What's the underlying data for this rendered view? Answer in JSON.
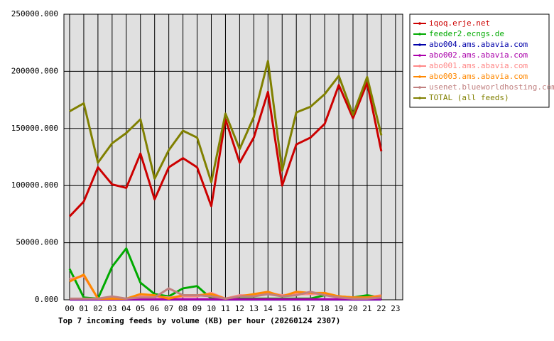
{
  "chart_data": {
    "type": "line",
    "title": "Top 7 incoming feeds by volume (KB) per hour (20260124 2307)",
    "categories": [
      "00",
      "01",
      "02",
      "03",
      "04",
      "05",
      "06",
      "07",
      "08",
      "09",
      "10",
      "11",
      "12",
      "13",
      "14",
      "15",
      "16",
      "17",
      "18",
      "19",
      "20",
      "21",
      "22",
      "23"
    ],
    "ylim": [
      0,
      250000
    ],
    "yticks": [
      {
        "value": 0,
        "label": "0.000"
      },
      {
        "value": 50000,
        "label": "50000.000"
      },
      {
        "value": 100000,
        "label": "100000.000"
      },
      {
        "value": 150000,
        "label": "150000.000"
      },
      {
        "value": 200000,
        "label": "200000.000"
      },
      {
        "value": 250000,
        "label": "250000.000"
      }
    ],
    "grid": true,
    "legend": "right",
    "series": [
      {
        "name": "iqoq.erje.net",
        "color": "#cc0000",
        "values": [
          73000,
          86000,
          116000,
          101000,
          98000,
          128000,
          88000,
          116000,
          124000,
          116000,
          82000,
          158000,
          120000,
          142000,
          182000,
          100000,
          136000,
          142000,
          154000,
          188000,
          159000,
          190000,
          130000,
          null
        ]
      },
      {
        "name": "feeder2.ecngs.de",
        "color": "#00aa00",
        "values": [
          27000,
          2000,
          1000,
          29000,
          45000,
          15000,
          5000,
          3000,
          10000,
          12000,
          1000,
          1000,
          1000,
          1000,
          1000,
          1000,
          1000,
          1000,
          4000,
          3000,
          2000,
          4000,
          2000,
          null
        ]
      },
      {
        "name": "abo004.ams.abavia.com",
        "color": "#0000aa",
        "values": [
          200,
          200,
          200,
          200,
          200,
          200,
          200,
          200,
          200,
          200,
          200,
          200,
          200,
          200,
          200,
          200,
          200,
          200,
          200,
          200,
          200,
          200,
          200,
          null
        ]
      },
      {
        "name": "abo002.ams.abavia.com",
        "color": "#aa00aa",
        "values": [
          500,
          500,
          500,
          500,
          500,
          500,
          500,
          500,
          500,
          500,
          500,
          500,
          500,
          500,
          500,
          500,
          500,
          500,
          500,
          500,
          500,
          500,
          500,
          null
        ]
      },
      {
        "name": "abo001.ams.abavia.com",
        "color": "#ff8888",
        "values": [
          18000,
          21000,
          1000,
          1000,
          1000,
          3000,
          3000,
          2000,
          3000,
          3000,
          6000,
          1000,
          4000,
          4000,
          6000,
          4000,
          5000,
          5000,
          5000,
          3000,
          2000,
          2000,
          4000,
          null
        ]
      },
      {
        "name": "abo003.ams.abavia.com",
        "color": "#ff8800",
        "values": [
          16000,
          22000,
          1000,
          1000,
          1000,
          5000,
          4000,
          1000,
          4000,
          4000,
          5000,
          1000,
          3000,
          5000,
          7000,
          3000,
          7000,
          6000,
          6000,
          3000,
          2000,
          2000,
          3000,
          null
        ]
      },
      {
        "name": "usenet.blueworldhosting.com",
        "color": "#c08080",
        "values": [
          1000,
          1000,
          1000,
          3000,
          1000,
          2000,
          2000,
          10000,
          4000,
          4000,
          3000,
          1000,
          3000,
          3000,
          5000,
          3000,
          4000,
          7000,
          4000,
          2000,
          1000,
          1000,
          2000,
          null
        ]
      },
      {
        "name": "TOTAL (all feeds)",
        "color": "#808000",
        "values": [
          165000,
          172000,
          120000,
          137000,
          146000,
          158000,
          106000,
          131000,
          148000,
          142000,
          103000,
          163000,
          132000,
          160000,
          209000,
          113000,
          164000,
          169000,
          180000,
          196000,
          162000,
          195000,
          144000,
          null
        ]
      }
    ]
  }
}
